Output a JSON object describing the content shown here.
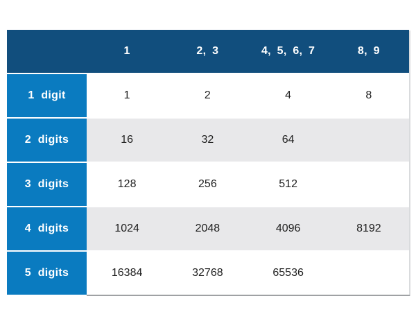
{
  "table": {
    "corner_label": "",
    "columns": [
      "1",
      "2, 3",
      "4, 5, 6, 7",
      "8, 9"
    ],
    "rows": [
      {
        "label": "1 digit",
        "values": [
          "1",
          "2",
          "4",
          "8"
        ]
      },
      {
        "label": "2 digits",
        "values": [
          "16",
          "32",
          "64",
          ""
        ]
      },
      {
        "label": "3 digits",
        "values": [
          "128",
          "256",
          "512",
          ""
        ]
      },
      {
        "label": "4 digits",
        "values": [
          "1024",
          "2048",
          "4096",
          "8192"
        ]
      },
      {
        "label": "5 digits",
        "values": [
          "16384",
          "32768",
          "65536",
          ""
        ]
      }
    ],
    "colors": {
      "header_background": "#114e7d",
      "row_header_background": "#0a7bc0",
      "alternate_row_background": "#e8e8ea",
      "body_text": "#202020",
      "header_text": "#ffffff"
    }
  },
  "chart_data": {
    "type": "table",
    "title": "",
    "columns": [
      "1",
      "2, 3",
      "4, 5, 6, 7",
      "8, 9"
    ],
    "row_labels": [
      "1 digit",
      "2 digits",
      "3 digits",
      "4 digits",
      "5 digits"
    ],
    "values": [
      [
        1,
        2,
        4,
        8
      ],
      [
        16,
        32,
        64,
        null
      ],
      [
        128,
        256,
        512,
        null
      ],
      [
        1024,
        2048,
        4096,
        8192
      ],
      [
        16384,
        32768,
        65536,
        null
      ]
    ]
  }
}
